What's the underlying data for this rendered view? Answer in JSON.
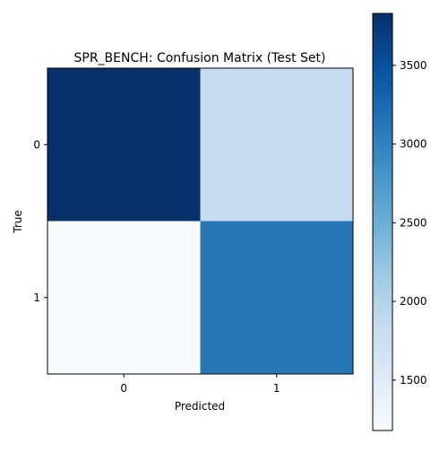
{
  "chart_data": {
    "type": "heatmap",
    "title": "SPR_BENCH: Confusion Matrix (Test Set)",
    "xlabel": "Predicted",
    "ylabel": "True",
    "x_categories": [
      "0",
      "1"
    ],
    "y_categories": [
      "0",
      "1"
    ],
    "values": [
      [
        3830,
        1670
      ],
      [
        1180,
        3150
      ]
    ],
    "colormap": "Blues",
    "colorbar": {
      "vmin": 1180,
      "vmax": 3830,
      "ticks": [
        1500,
        2000,
        2500,
        3000,
        3500
      ],
      "tick_labels": [
        "1500",
        "2000",
        "2500",
        "3000",
        "3500"
      ]
    },
    "colors": {
      "cell_0_0": "#08306b",
      "cell_0_1": "#c6dbef",
      "cell_1_0": "#f7fbff",
      "cell_1_1": "#2878b8"
    }
  }
}
